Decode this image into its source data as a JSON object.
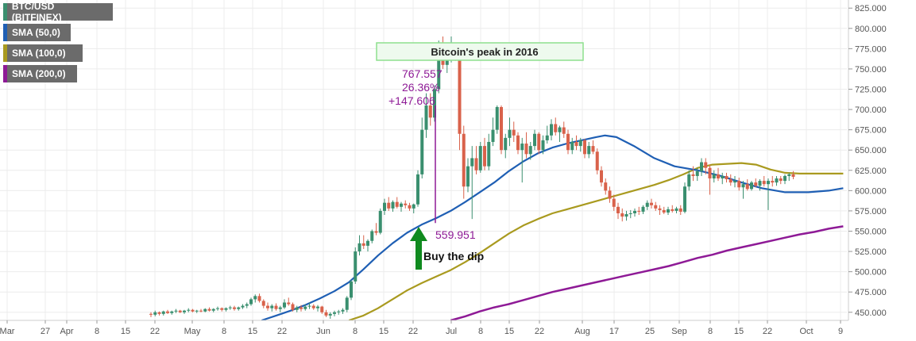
{
  "legend": {
    "main": "BTC/USD (BITFINEX)",
    "sma50": "SMA (50,0)",
    "sma100": "SMA (100,0)",
    "sma200": "SMA (200,0)"
  },
  "colors": {
    "up": "#3a8f6f",
    "down": "#d9624b",
    "sma50": "#1f5fb4",
    "sma100": "#a99a1f",
    "sma200": "#8e1a96",
    "annotation": "#8e1a96",
    "arrow": "#0f8a1e",
    "peak_box": "#8ee08e"
  },
  "chart_data": {
    "type": "candlestick",
    "ylim": [
      440,
      835
    ],
    "y_ticks": [
      "450.000",
      "475.000",
      "500.000",
      "525.000",
      "550.000",
      "575.000",
      "600.000",
      "625.000",
      "650.000",
      "675.000",
      "700.000",
      "725.000",
      "750.000",
      "775.000",
      "800.000",
      "825.000"
    ],
    "x_ticks": [
      "Mar",
      "27",
      "Apr",
      "8",
      "15",
      "22",
      "May",
      "8",
      "15",
      "22",
      "Jun",
      "8",
      "15",
      "22",
      "Jul",
      "8",
      "15",
      "22",
      "Aug",
      "17",
      "25",
      "Sep",
      "8",
      "15",
      "22",
      "Oct",
      "9"
    ],
    "candles": [
      [
        0,
        448,
        450,
        444,
        447
      ],
      [
        1,
        447,
        452,
        445,
        450
      ],
      [
        2,
        450,
        451,
        446,
        448
      ],
      [
        3,
        448,
        452,
        446,
        451
      ],
      [
        4,
        451,
        453,
        448,
        449
      ],
      [
        5,
        449,
        452,
        447,
        451
      ],
      [
        6,
        451,
        454,
        449,
        452
      ],
      [
        7,
        452,
        453,
        449,
        450
      ],
      [
        8,
        450,
        453,
        448,
        452
      ],
      [
        9,
        452,
        455,
        450,
        453
      ],
      [
        10,
        453,
        454,
        450,
        451
      ],
      [
        11,
        451,
        453,
        449,
        452
      ],
      [
        12,
        452,
        454,
        450,
        451
      ],
      [
        13,
        451,
        455,
        450,
        454
      ],
      [
        14,
        454,
        456,
        451,
        452
      ],
      [
        15,
        452,
        455,
        450,
        454
      ],
      [
        16,
        454,
        457,
        452,
        455
      ],
      [
        17,
        455,
        456,
        451,
        453
      ],
      [
        18,
        453,
        456,
        451,
        455
      ],
      [
        19,
        455,
        458,
        453,
        456
      ],
      [
        20,
        456,
        458,
        452,
        454
      ],
      [
        21,
        454,
        457,
        452,
        456
      ],
      [
        22,
        456,
        460,
        454,
        458
      ],
      [
        23,
        458,
        462,
        455,
        460
      ],
      [
        24,
        460,
        468,
        458,
        466
      ],
      [
        25,
        466,
        472,
        462,
        470
      ],
      [
        26,
        470,
        473,
        462,
        464
      ],
      [
        27,
        464,
        466,
        455,
        458
      ],
      [
        28,
        458,
        462,
        452,
        455
      ],
      [
        29,
        455,
        460,
        451,
        458
      ],
      [
        30,
        458,
        461,
        452,
        454
      ],
      [
        31,
        454,
        458,
        450,
        456
      ],
      [
        32,
        456,
        466,
        454,
        462
      ],
      [
        33,
        462,
        468,
        458,
        460
      ],
      [
        34,
        460,
        462,
        451,
        453
      ],
      [
        35,
        453,
        458,
        450,
        456
      ],
      [
        36,
        456,
        459,
        451,
        454
      ],
      [
        37,
        454,
        460,
        452,
        457
      ],
      [
        38,
        457,
        462,
        454,
        458
      ],
      [
        39,
        458,
        460,
        453,
        455
      ],
      [
        40,
        455,
        459,
        451,
        457
      ],
      [
        41,
        457,
        458,
        448,
        450
      ],
      [
        42,
        450,
        453,
        444,
        446
      ],
      [
        43,
        446,
        450,
        442,
        448
      ],
      [
        44,
        448,
        452,
        445,
        450
      ],
      [
        45,
        450,
        453,
        447,
        451
      ],
      [
        46,
        451,
        455,
        448,
        453
      ],
      [
        47,
        453,
        470,
        450,
        468
      ],
      [
        48,
        468,
        490,
        465,
        488
      ],
      [
        49,
        488,
        530,
        485,
        525
      ],
      [
        50,
        525,
        545,
        520,
        535
      ],
      [
        51,
        535,
        545,
        528,
        532
      ],
      [
        52,
        532,
        540,
        525,
        538
      ],
      [
        53,
        538,
        552,
        535,
        550
      ],
      [
        54,
        550,
        560,
        545,
        548
      ],
      [
        55,
        548,
        578,
        546,
        575
      ],
      [
        56,
        575,
        590,
        570,
        585
      ],
      [
        57,
        585,
        592,
        575,
        578
      ],
      [
        58,
        578,
        588,
        574,
        586
      ],
      [
        59,
        586,
        592,
        578,
        580
      ],
      [
        60,
        580,
        586,
        574,
        584
      ],
      [
        61,
        584,
        588,
        578,
        582
      ],
      [
        62,
        582,
        585,
        575,
        578
      ],
      [
        63,
        578,
        584,
        572,
        583
      ],
      [
        64,
        583,
        625,
        580,
        620
      ],
      [
        65,
        620,
        690,
        615,
        675
      ],
      [
        66,
        675,
        720,
        665,
        705
      ],
      [
        67,
        705,
        720,
        680,
        690
      ],
      [
        68,
        690,
        730,
        685,
        725
      ],
      [
        69,
        725,
        785,
        720,
        770
      ],
      [
        70,
        770,
        790,
        750,
        755
      ],
      [
        71,
        755,
        775,
        745,
        765
      ],
      [
        72,
        765,
        790,
        758,
        775
      ],
      [
        73,
        775,
        780,
        760,
        770
      ],
      [
        74,
        770,
        775,
        650,
        670
      ],
      [
        75,
        670,
        680,
        590,
        605
      ],
      [
        76,
        605,
        640,
        598,
        630
      ],
      [
        77,
        630,
        655,
        565,
        640
      ],
      [
        78,
        640,
        655,
        620,
        625
      ],
      [
        79,
        625,
        660,
        622,
        655
      ],
      [
        80,
        655,
        665,
        625,
        630
      ],
      [
        81,
        630,
        670,
        625,
        660
      ],
      [
        82,
        660,
        690,
        655,
        675
      ],
      [
        83,
        675,
        705,
        670,
        703
      ],
      [
        84,
        703,
        705,
        645,
        650
      ],
      [
        85,
        650,
        670,
        640,
        665
      ],
      [
        86,
        665,
        690,
        655,
        675
      ],
      [
        87,
        675,
        685,
        660,
        668
      ],
      [
        88,
        668,
        672,
        645,
        650
      ],
      [
        89,
        650,
        665,
        610,
        658
      ],
      [
        90,
        658,
        672,
        640,
        645
      ],
      [
        91,
        645,
        660,
        638,
        655
      ],
      [
        92,
        655,
        675,
        650,
        670
      ],
      [
        93,
        670,
        672,
        645,
        650
      ],
      [
        94,
        650,
        668,
        645,
        662
      ],
      [
        95,
        662,
        680,
        658,
        668
      ],
      [
        96,
        668,
        688,
        662,
        682
      ],
      [
        97,
        682,
        690,
        668,
        672
      ],
      [
        98,
        672,
        680,
        660,
        678
      ],
      [
        99,
        678,
        685,
        665,
        670
      ],
      [
        100,
        670,
        675,
        645,
        650
      ],
      [
        101,
        650,
        665,
        645,
        660
      ],
      [
        102,
        660,
        668,
        650,
        655
      ],
      [
        103,
        655,
        665,
        648,
        662
      ],
      [
        104,
        662,
        664,
        640,
        645
      ],
      [
        105,
        645,
        660,
        640,
        655
      ],
      [
        106,
        655,
        662,
        645,
        648
      ],
      [
        107,
        648,
        652,
        620,
        625
      ],
      [
        108,
        625,
        630,
        605,
        610
      ],
      [
        109,
        610,
        615,
        595,
        600
      ],
      [
        110,
        600,
        605,
        585,
        590
      ],
      [
        111,
        590,
        595,
        575,
        580
      ],
      [
        112,
        580,
        585,
        565,
        572
      ],
      [
        113,
        572,
        578,
        562,
        568
      ],
      [
        114,
        568,
        575,
        563,
        571
      ],
      [
        115,
        571,
        576,
        566,
        572
      ],
      [
        116,
        572,
        578,
        568,
        575
      ],
      [
        117,
        575,
        580,
        570,
        574
      ],
      [
        118,
        574,
        582,
        571,
        580
      ],
      [
        119,
        580,
        588,
        576,
        585
      ],
      [
        120,
        585,
        590,
        578,
        582
      ],
      [
        121,
        582,
        586,
        575,
        578
      ],
      [
        122,
        578,
        582,
        570,
        576
      ],
      [
        123,
        576,
        580,
        571,
        573
      ],
      [
        124,
        573,
        580,
        570,
        577
      ],
      [
        125,
        577,
        582,
        573,
        575
      ],
      [
        126,
        575,
        580,
        572,
        578
      ],
      [
        127,
        578,
        582,
        570,
        574
      ],
      [
        128,
        574,
        610,
        572,
        605
      ],
      [
        129,
        605,
        625,
        600,
        620
      ],
      [
        130,
        620,
        630,
        612,
        618
      ],
      [
        131,
        618,
        628,
        612,
        624
      ],
      [
        132,
        624,
        640,
        618,
        635
      ],
      [
        133,
        635,
        640,
        620,
        628
      ],
      [
        134,
        628,
        632,
        595,
        615
      ],
      [
        135,
        615,
        625,
        610,
        620
      ],
      [
        136,
        620,
        628,
        612,
        615
      ],
      [
        137,
        615,
        622,
        608,
        618
      ],
      [
        138,
        618,
        622,
        610,
        614
      ],
      [
        139,
        614,
        620,
        606,
        610
      ],
      [
        140,
        610,
        618,
        604,
        612
      ],
      [
        141,
        612,
        616,
        600,
        604
      ],
      [
        142,
        604,
        612,
        590,
        608
      ],
      [
        143,
        608,
        614,
        600,
        602
      ],
      [
        144,
        602,
        612,
        600,
        610
      ],
      [
        145,
        610,
        615,
        604,
        606
      ],
      [
        146,
        606,
        614,
        600,
        612
      ],
      [
        147,
        612,
        618,
        605,
        608
      ],
      [
        148,
        608,
        615,
        576,
        612
      ],
      [
        149,
        612,
        618,
        605,
        610
      ],
      [
        150,
        610,
        618,
        606,
        615
      ],
      [
        151,
        615,
        618,
        608,
        612
      ],
      [
        152,
        612,
        620,
        608,
        618
      ],
      [
        153,
        618,
        622,
        612,
        620
      ],
      [
        154,
        620,
        624,
        614,
        617
      ]
    ],
    "sma50": [
      [
        90,
        440
      ],
      [
        95,
        446
      ],
      [
        100,
        452
      ],
      [
        105,
        459
      ],
      [
        110,
        467
      ],
      [
        115,
        476
      ],
      [
        120,
        487
      ],
      [
        125,
        503
      ],
      [
        130,
        520
      ],
      [
        135,
        535
      ],
      [
        140,
        548
      ],
      [
        145,
        558
      ],
      [
        150,
        566
      ],
      [
        155,
        575
      ],
      [
        160,
        586
      ],
      [
        165,
        598
      ],
      [
        170,
        610
      ],
      [
        175,
        624
      ],
      [
        180,
        636
      ],
      [
        185,
        646
      ],
      [
        190,
        653
      ],
      [
        195,
        658
      ],
      [
        200,
        662
      ],
      [
        205,
        666
      ],
      [
        208,
        668
      ],
      [
        212,
        666
      ],
      [
        218,
        655
      ],
      [
        225,
        640
      ],
      [
        232,
        630
      ],
      [
        240,
        625
      ],
      [
        248,
        618
      ],
      [
        255,
        610
      ],
      [
        262,
        603
      ],
      [
        270,
        598
      ],
      [
        278,
        598
      ],
      [
        285,
        600
      ],
      [
        290,
        603
      ]
    ],
    "sma100": [
      [
        120,
        440
      ],
      [
        125,
        446
      ],
      [
        130,
        455
      ],
      [
        135,
        466
      ],
      [
        140,
        477
      ],
      [
        145,
        486
      ],
      [
        150,
        494
      ],
      [
        155,
        502
      ],
      [
        160,
        512
      ],
      [
        165,
        523
      ],
      [
        170,
        535
      ],
      [
        175,
        547
      ],
      [
        180,
        557
      ],
      [
        185,
        565
      ],
      [
        190,
        572
      ],
      [
        195,
        577
      ],
      [
        200,
        582
      ],
      [
        205,
        587
      ],
      [
        210,
        592
      ],
      [
        215,
        597
      ],
      [
        220,
        602
      ],
      [
        225,
        607
      ],
      [
        230,
        613
      ],
      [
        235,
        620
      ],
      [
        240,
        628
      ],
      [
        245,
        632
      ],
      [
        250,
        633
      ],
      [
        255,
        634
      ],
      [
        260,
        632
      ],
      [
        265,
        626
      ],
      [
        270,
        622
      ],
      [
        275,
        621
      ],
      [
        290,
        621
      ]
    ],
    "sma200": [
      [
        155,
        440
      ],
      [
        160,
        445
      ],
      [
        165,
        451
      ],
      [
        170,
        456
      ],
      [
        175,
        460
      ],
      [
        180,
        465
      ],
      [
        185,
        470
      ],
      [
        190,
        475
      ],
      [
        195,
        479
      ],
      [
        200,
        483
      ],
      [
        205,
        487
      ],
      [
        210,
        491
      ],
      [
        215,
        495
      ],
      [
        220,
        499
      ],
      [
        225,
        503
      ],
      [
        230,
        507
      ],
      [
        235,
        512
      ],
      [
        240,
        517
      ],
      [
        245,
        521
      ],
      [
        250,
        526
      ],
      [
        255,
        530
      ],
      [
        260,
        534
      ],
      [
        265,
        538
      ],
      [
        270,
        542
      ],
      [
        275,
        546
      ],
      [
        280,
        549
      ],
      [
        285,
        553
      ],
      [
        290,
        556
      ]
    ],
    "annotations": {
      "peak_label": "Bitcoin's peak in 2016",
      "measure_lines": [
        "767.557",
        "26.36%",
        "+147.606"
      ],
      "low_label": "559.951",
      "dip_label": "Buy the dip"
    }
  }
}
